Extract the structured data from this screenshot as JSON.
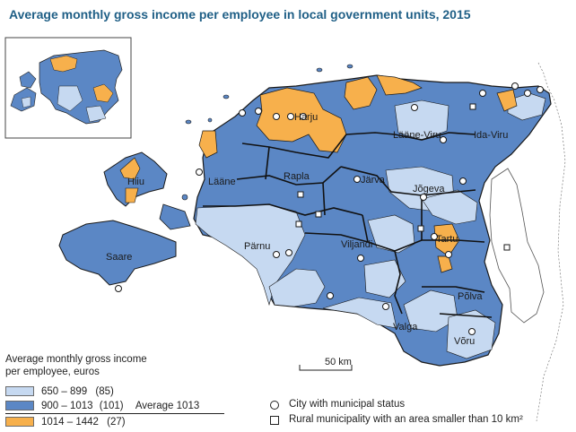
{
  "title": "Average monthly gross income per employee in local government units, 2015",
  "colors": {
    "low": "#c6d9f1",
    "mid": "#5b87c5",
    "high": "#f7b04c",
    "border": "#1a1a1a",
    "title": "#1f5f86"
  },
  "regions": {
    "harju": "Harju",
    "laane_viru": "Lääne-Viru",
    "ida_viru": "Ida-Viru",
    "hiiu": "Hiiu",
    "laane": "Lääne",
    "rapla": "Rapla",
    "jarva": "Järva",
    "jogeva": "Jõgeva",
    "parnu": "Pärnu",
    "viljandi": "Viljandi",
    "tartu": "Tartu",
    "saare": "Saare",
    "polva": "Põlva",
    "valga": "Valga",
    "voru": "Võru"
  },
  "scale": {
    "label": "50 km"
  },
  "legend": {
    "title_line1": "Average monthly gross income",
    "title_line2": "per employee, euros",
    "classes": [
      {
        "range": "650 –  899",
        "count": "(85)",
        "color": "#c6d9f1"
      },
      {
        "range": "900 – 1013",
        "count": "(101)",
        "color": "#5b87c5",
        "note": "Average 1013"
      },
      {
        "range": "1014 – 1442",
        "count": "(27)",
        "color": "#f7b04c"
      }
    ],
    "symbols": {
      "city": "City with municipal status",
      "rural": "Rural municipality with an area smaller than 10 km²"
    }
  }
}
